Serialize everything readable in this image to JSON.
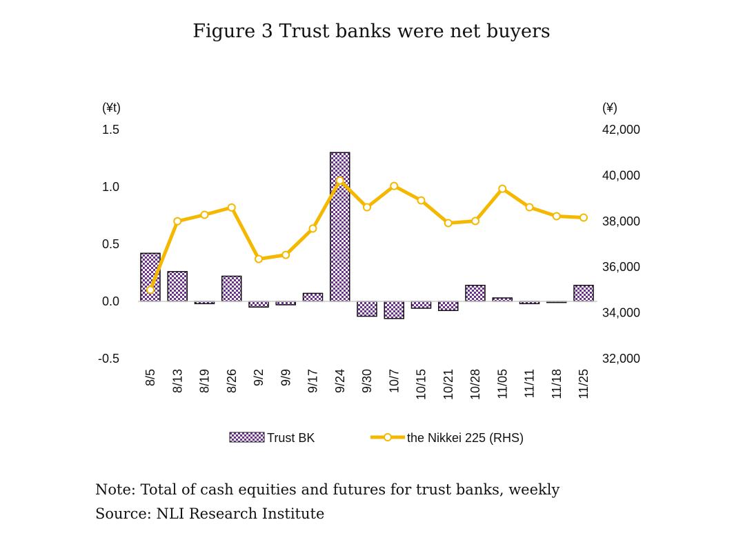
{
  "chart_data": {
    "type": "bar+line",
    "title": "Figure 3 Trust banks were net buyers",
    "categories": [
      "8/5",
      "8/13",
      "8/19",
      "8/26",
      "9/2",
      "9/9",
      "9/17",
      "9/24",
      "9/30",
      "10/7",
      "10/15",
      "10/21",
      "10/28",
      "11/05",
      "11/11",
      "11/18",
      "11/25"
    ],
    "series": [
      {
        "name": "Trust BK",
        "type": "bar",
        "axis": "left",
        "color": "#6a2f8f",
        "values": [
          0.42,
          0.26,
          -0.02,
          0.22,
          -0.05,
          -0.03,
          0.07,
          1.3,
          -0.13,
          -0.15,
          -0.06,
          -0.08,
          0.14,
          0.03,
          -0.02,
          -0.01,
          0.14
        ]
      },
      {
        "name": "the Nikkei 225 (RHS)",
        "type": "line",
        "axis": "right",
        "color": "#f5b800",
        "values": [
          35000,
          38000,
          38280,
          38600,
          36350,
          36530,
          37680,
          39780,
          38610,
          39540,
          38910,
          37920,
          38010,
          39420,
          38610,
          38220,
          38160
        ]
      }
    ],
    "left_axis": {
      "unit": "(¥t)",
      "ylim": [
        -0.5,
        1.5
      ],
      "ticks": [
        "1.5",
        "1.0",
        "0.5",
        "0.0",
        "-0.5"
      ],
      "tick_values": [
        1.5,
        1.0,
        0.5,
        0.0,
        -0.5
      ]
    },
    "right_axis": {
      "unit": "(¥)",
      "ylim": [
        32000,
        42000
      ],
      "ticks": [
        "42,000",
        "40,000",
        "38,000",
        "36,000",
        "34,000",
        "32,000"
      ],
      "tick_values": [
        42000,
        40000,
        38000,
        36000,
        34000,
        32000
      ]
    },
    "grid": false,
    "legend": "bottom"
  },
  "notes": {
    "note": "Note: Total of cash equities and futures for trust banks, weekly",
    "source": "Source: NLI Research Institute"
  }
}
